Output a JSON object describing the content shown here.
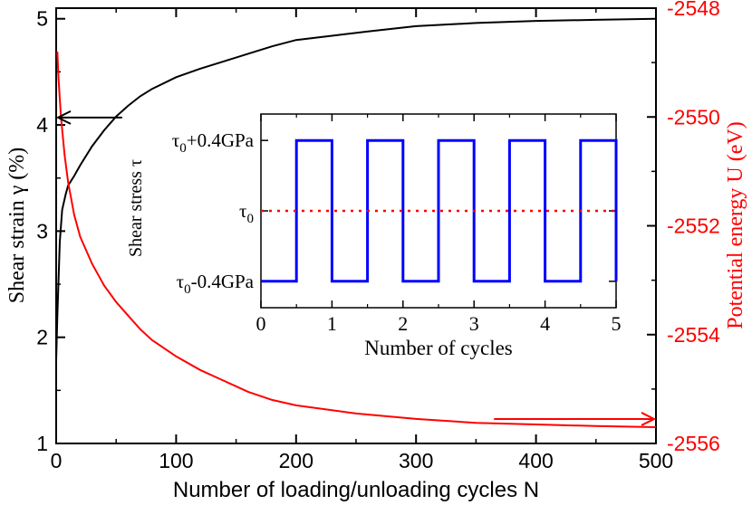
{
  "chart_data": [
    {
      "type": "line",
      "xlabel": "Number of loading/unloading cycles N",
      "ylabel": "Shear strain γ (%)",
      "y2label": "Potential energy U (eV)",
      "xlim": [
        0,
        500
      ],
      "ylim": [
        1,
        5.1
      ],
      "y2lim": [
        -2556,
        -2548
      ],
      "x_ticks": [
        "0",
        "100",
        "200",
        "300",
        "400",
        "500"
      ],
      "y_ticks": [
        "1",
        "2",
        "3",
        "4",
        "5"
      ],
      "y2_ticks": [
        "-2548",
        "-2550",
        "-2552",
        "-2554",
        "-2556"
      ],
      "series": [
        {
          "axis": "left",
          "color": "#000000",
          "x": [
            0,
            1,
            3,
            5,
            8,
            10,
            15,
            20,
            30,
            40,
            50,
            60,
            70,
            80,
            100,
            120,
            140,
            160,
            180,
            200,
            230,
            260,
            300,
            350,
            400,
            450,
            500
          ],
          "y": [
            1.78,
            2.2,
            2.9,
            3.2,
            3.35,
            3.43,
            3.52,
            3.62,
            3.8,
            3.95,
            4.08,
            4.18,
            4.27,
            4.34,
            4.45,
            4.53,
            4.6,
            4.67,
            4.74,
            4.8,
            4.84,
            4.88,
            4.93,
            4.96,
            4.98,
            4.99,
            5.0
          ]
        },
        {
          "axis": "right",
          "color": "#ff0000",
          "x": [
            1,
            2,
            4,
            7,
            10,
            15,
            20,
            30,
            40,
            50,
            60,
            70,
            80,
            100,
            120,
            140,
            160,
            180,
            200,
            250,
            300,
            350,
            400,
            450,
            500
          ],
          "y": [
            -2548.8,
            -2549.3,
            -2550.0,
            -2550.7,
            -2551.2,
            -2551.8,
            -2552.2,
            -2552.7,
            -2553.1,
            -2553.4,
            -2553.65,
            -2553.9,
            -2554.1,
            -2554.4,
            -2554.65,
            -2554.85,
            -2555.05,
            -2555.2,
            -2555.3,
            -2555.45,
            -2555.55,
            -2555.62,
            -2555.65,
            -2555.68,
            -2555.7
          ]
        }
      ],
      "annotations": [
        {
          "type": "arrow",
          "color": "#000000",
          "from": [
            55,
            4.07
          ],
          "to": [
            0,
            4.07
          ],
          "axis": "left"
        },
        {
          "type": "arrow",
          "color": "#ff0000",
          "from": [
            365,
            -2555.55
          ],
          "to": [
            500,
            -2555.55
          ],
          "axis": "right"
        }
      ]
    },
    {
      "type": "line",
      "inset": true,
      "xlabel": "Number of cycles",
      "ylabel": "Shear stress τ",
      "xlim": [
        0,
        5
      ],
      "ylim": [
        -0.55,
        0.55
      ],
      "x_ticks": [
        "0",
        "1",
        "2",
        "3",
        "4",
        "5"
      ],
      "y_ticks": [
        {
          "value": 0.4,
          "base": "τ",
          "sub": "0",
          "suffix": "+0.4GPa"
        },
        {
          "value": 0.0,
          "base": "τ",
          "sub": "0",
          "suffix": ""
        },
        {
          "value": -0.4,
          "base": "τ",
          "sub": "0",
          "suffix": "-0.4GPa"
        }
      ],
      "series": [
        {
          "color": "#0000ff",
          "style": "solid",
          "x": [
            0,
            0.5,
            0.5,
            1.0,
            1.0,
            1.5,
            1.5,
            2.0,
            2.0,
            2.5,
            2.5,
            3.0,
            3.0,
            3.5,
            3.5,
            4.0,
            4.0,
            4.5,
            4.5,
            5.0,
            5.0
          ],
          "y": [
            -0.4,
            -0.4,
            0.4,
            0.4,
            -0.4,
            -0.4,
            0.4,
            0.4,
            -0.4,
            -0.4,
            0.4,
            0.4,
            -0.4,
            -0.4,
            0.4,
            0.4,
            -0.4,
            -0.4,
            0.4,
            0.4,
            -0.4
          ]
        },
        {
          "color": "#ff0000",
          "style": "dotted",
          "x": [
            0,
            5
          ],
          "y": [
            0,
            0
          ]
        }
      ]
    }
  ]
}
